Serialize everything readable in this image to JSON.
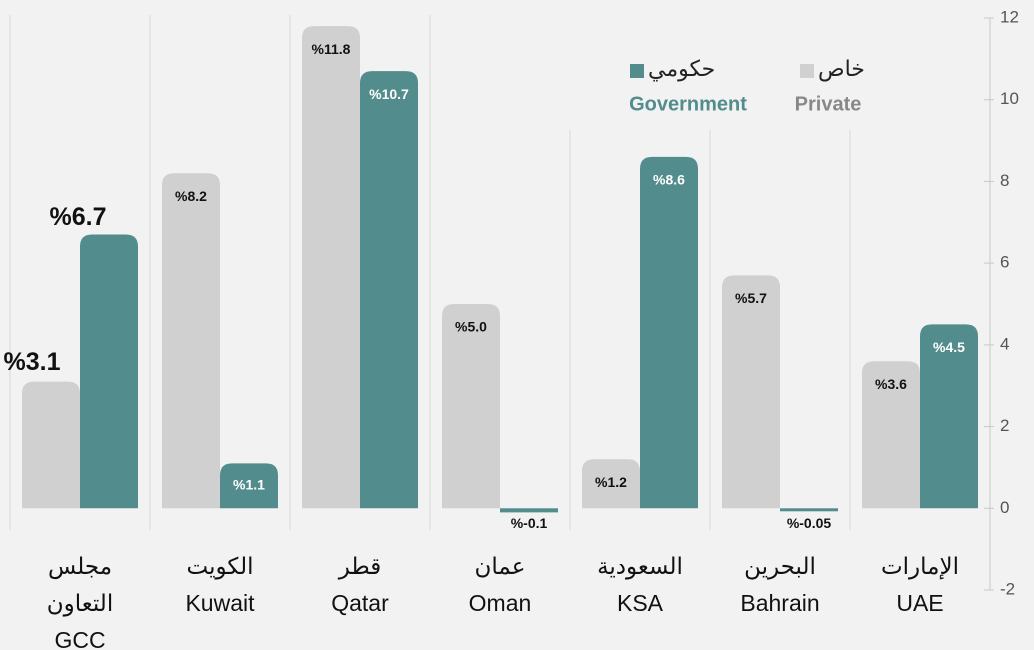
{
  "chart_data": {
    "type": "bar",
    "categories": [
      [
        "مجلس",
        "التعاون",
        "GCC"
      ],
      [
        "الكويت",
        "Kuwait"
      ],
      [
        "قطر",
        "Qatar"
      ],
      [
        "عمان",
        "Oman"
      ],
      [
        "السعودية",
        "KSA"
      ],
      [
        "البحرين",
        "Bahrain"
      ],
      [
        "الإمارات",
        "UAE"
      ]
    ],
    "series": [
      {
        "name": "Private",
        "name_ar": "خاص",
        "color": "#d0d0d0",
        "label_color": "#888888",
        "values": [
          3.1,
          8.2,
          11.8,
          5.0,
          1.2,
          5.7,
          3.6
        ],
        "value_labels": [
          "%3.1",
          "%8.2",
          "%11.8",
          "%5.0",
          "%1.2",
          "%5.7",
          "%3.6"
        ]
      },
      {
        "name": "Government",
        "name_ar": "حكومي",
        "color": "#528c8c",
        "label_color": "#528c8c",
        "values": [
          6.7,
          1.1,
          10.7,
          -0.1,
          8.6,
          -0.05,
          4.5
        ],
        "value_labels": [
          "%6.7",
          "%1.1",
          "%10.7",
          "%-0.1",
          "%8.6",
          "%-0.05",
          "%4.5"
        ]
      }
    ],
    "ylim": [
      -2,
      12
    ],
    "yticks": [
      -2,
      0,
      2,
      4,
      6,
      8,
      10,
      12
    ]
  }
}
